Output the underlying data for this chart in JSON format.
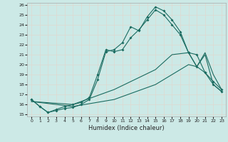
{
  "xlabel": "Humidex (Indice chaleur)",
  "xlim": [
    -0.5,
    23.5
  ],
  "ylim": [
    14.8,
    26.2
  ],
  "yticks": [
    15,
    16,
    17,
    18,
    19,
    20,
    21,
    22,
    23,
    24,
    25,
    26
  ],
  "xticks": [
    0,
    1,
    2,
    3,
    4,
    5,
    6,
    7,
    8,
    9,
    10,
    11,
    12,
    13,
    14,
    15,
    16,
    17,
    18,
    19,
    20,
    21,
    22,
    23
  ],
  "bg_color": "#cce9e6",
  "grid_color": "#e0d8d0",
  "line_color": "#1a6b60",
  "line1_x": [
    0,
    1,
    2,
    3,
    4,
    5,
    6,
    7,
    8,
    9,
    10,
    11,
    12,
    13,
    14,
    15,
    16,
    17,
    18,
    19,
    20,
    21,
    22,
    23
  ],
  "line1_y": [
    16.5,
    15.8,
    15.2,
    15.4,
    15.6,
    15.7,
    16.0,
    16.5,
    18.5,
    21.3,
    21.5,
    22.2,
    23.8,
    23.4,
    24.8,
    25.8,
    25.4,
    24.5,
    23.3,
    21.2,
    21.0,
    19.2,
    18.0,
    17.3
  ],
  "line2_x": [
    0,
    1,
    2,
    3,
    4,
    5,
    6,
    7,
    8,
    9,
    10,
    11,
    12,
    13,
    14,
    15,
    16,
    17,
    18,
    19,
    20,
    21,
    22,
    23
  ],
  "line2_y": [
    16.5,
    15.8,
    15.2,
    15.5,
    15.8,
    16.0,
    16.2,
    16.7,
    19.0,
    21.5,
    21.3,
    21.5,
    22.7,
    23.5,
    24.5,
    25.5,
    25.0,
    24.0,
    23.0,
    21.2,
    19.8,
    19.2,
    18.3,
    17.5
  ],
  "line3_x": [
    0,
    5,
    10,
    15,
    17,
    19,
    20,
    21,
    22,
    23
  ],
  "line3_y": [
    16.3,
    16.0,
    17.5,
    19.5,
    21.0,
    21.2,
    19.8,
    21.2,
    19.0,
    17.5
  ],
  "line4_x": [
    0,
    5,
    10,
    15,
    19,
    20,
    21,
    22,
    23
  ],
  "line4_y": [
    16.3,
    15.8,
    16.5,
    18.0,
    20.0,
    19.8,
    21.0,
    18.0,
    17.3
  ]
}
